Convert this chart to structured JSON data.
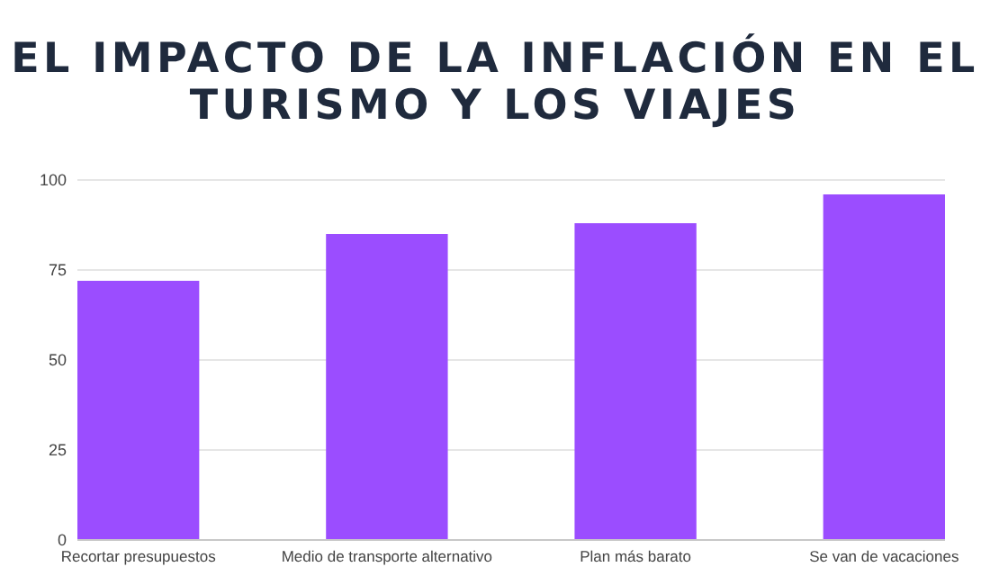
{
  "chart_data": {
    "type": "bar",
    "title": "EL IMPACTO DE LA INFLACIÓN EN EL TURISMO Y LOS VIAJES",
    "categories": [
      "Recortar presupuestos",
      "Medio de transporte alternativo",
      "Plan más barato",
      "Se van de vacaciones"
    ],
    "values": [
      72,
      85,
      88,
      96
    ],
    "color": "#9b4dff",
    "ylim": [
      0,
      100
    ],
    "yticks": [
      0,
      25,
      50,
      75,
      100
    ],
    "grid": "y"
  }
}
